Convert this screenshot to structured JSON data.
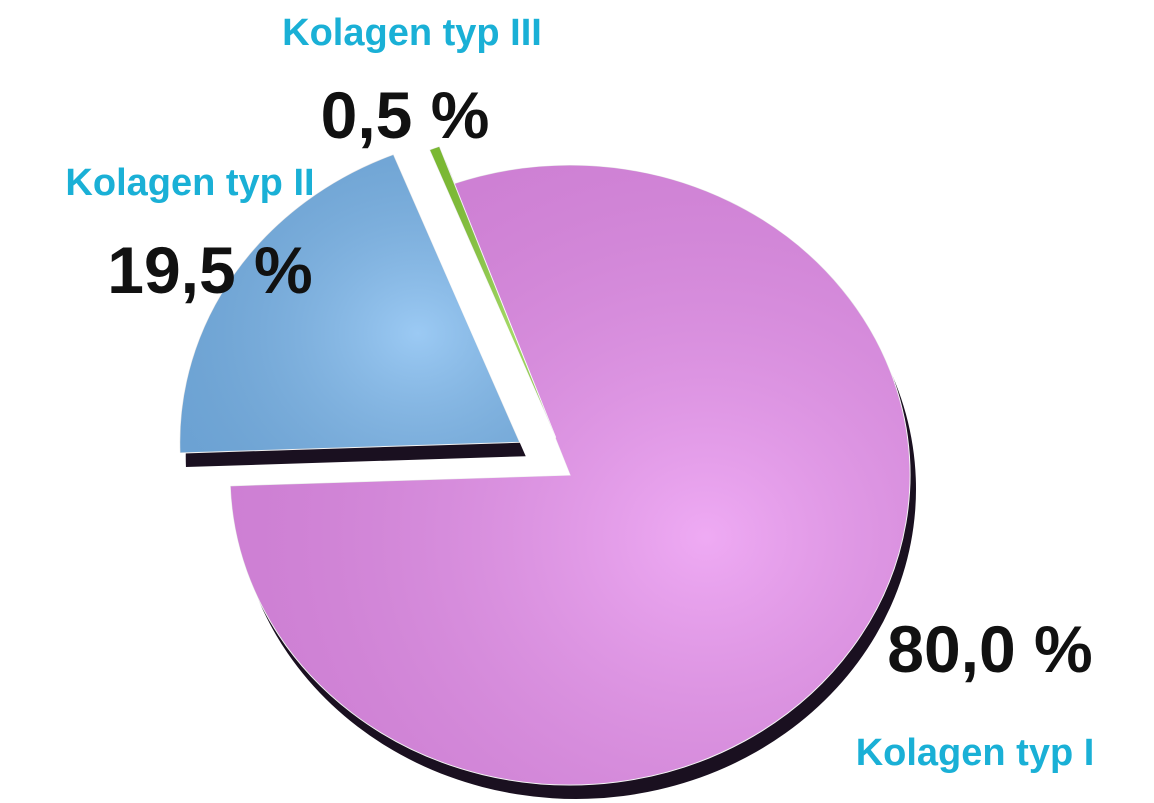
{
  "chart_data": {
    "type": "pie",
    "categories": [
      "Kolagen typ I",
      "Kolagen typ II",
      "Kolagen typ III"
    ],
    "values": [
      80.0,
      19.5,
      0.5
    ],
    "value_labels": [
      "80,0 %",
      "19,5 %",
      "0,5 %"
    ],
    "colors": [
      "#e98ef0",
      "#7ab8f0",
      "#8bd13a"
    ]
  }
}
